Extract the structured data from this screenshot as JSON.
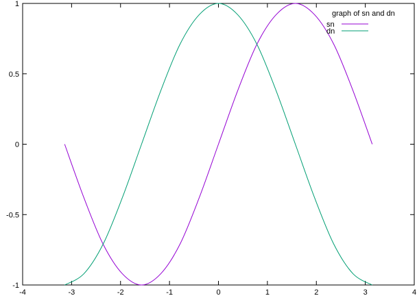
{
  "chart_data": {
    "type": "line",
    "title": "",
    "xlabel": "",
    "ylabel": "",
    "xlim": [
      -4,
      4
    ],
    "ylim": [
      -1,
      1
    ],
    "x_ticks": [
      "-4",
      "-3",
      "-2",
      "-1",
      "0",
      "1",
      "2",
      "3",
      "4"
    ],
    "y_ticks": [
      "-1",
      "-0.5",
      "0",
      "0.5",
      "1"
    ],
    "grid": false,
    "legend": {
      "title": "graph of sn and dn",
      "placement": "top-right"
    },
    "series": [
      {
        "name": "sn",
        "color": "#9400d3",
        "x": [
          -3.1416,
          -2.7489,
          -2.3562,
          -1.9635,
          -1.5708,
          -1.1781,
          -0.7854,
          -0.3927,
          0.0,
          0.3927,
          0.7854,
          1.1781,
          1.5708,
          1.9635,
          2.3562,
          2.7489,
          3.1416
        ],
        "y": [
          0.0,
          -0.38,
          -0.71,
          -0.92,
          -1.0,
          -0.92,
          -0.71,
          -0.38,
          0.0,
          0.38,
          0.71,
          0.92,
          1.0,
          0.92,
          0.71,
          0.38,
          0.0
        ]
      },
      {
        "name": "dn",
        "color": "#009e73",
        "x": [
          -3.1416,
          -2.7489,
          -2.3562,
          -1.9635,
          -1.5708,
          -1.1781,
          -0.7854,
          -0.3927,
          0.0,
          0.3927,
          0.7854,
          1.1781,
          1.5708,
          1.9635,
          2.3562,
          2.7489,
          3.1416
        ],
        "y": [
          -1.0,
          -0.92,
          -0.71,
          -0.38,
          0.0,
          0.38,
          0.71,
          0.92,
          1.0,
          0.92,
          0.71,
          0.38,
          0.0,
          -0.38,
          -0.71,
          -0.92,
          -1.0
        ]
      }
    ]
  }
}
